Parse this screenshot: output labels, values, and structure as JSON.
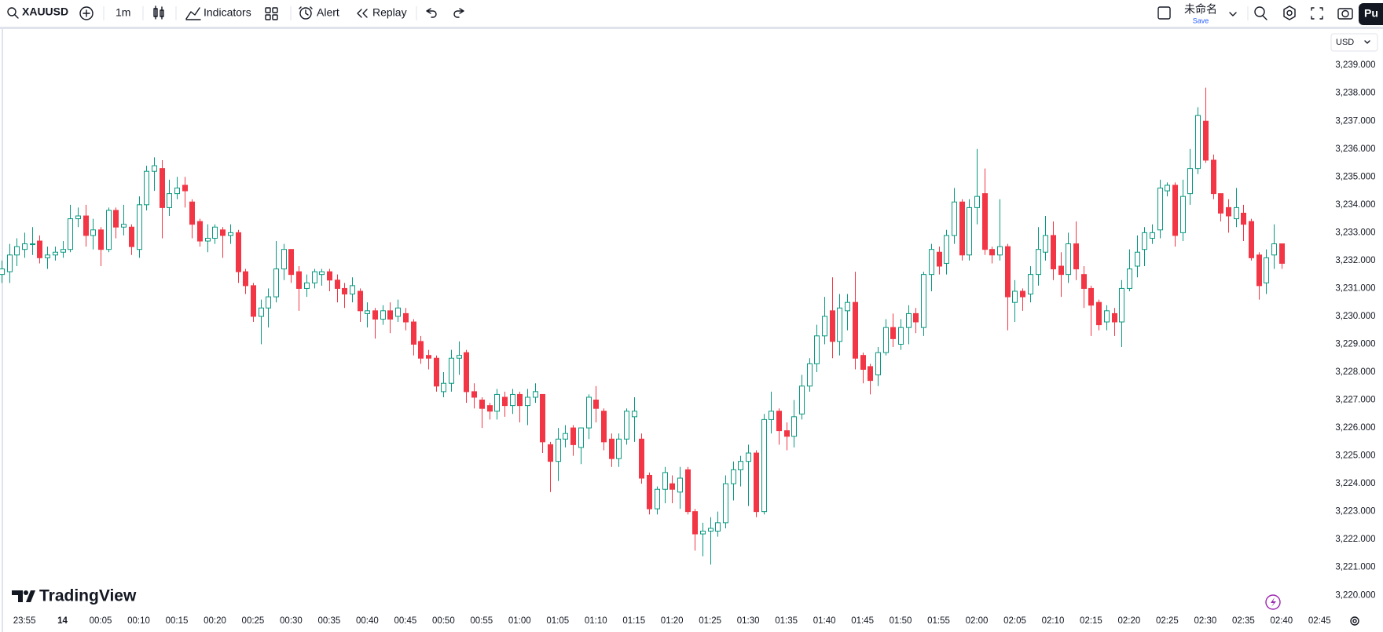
{
  "toolbar": {
    "symbol": "XAUUSD",
    "interval": "1m",
    "indicators": "Indicators",
    "alert": "Alert",
    "replay": "Replay",
    "layout_name": "未命名",
    "save": "Save",
    "publish": "Pu"
  },
  "chart_data": {
    "type": "candlestick",
    "currency": "USD",
    "watermark": "TradingView",
    "up_color": "#089981",
    "down_color": "#f23645",
    "up_hollow": true,
    "grid": false,
    "ylim": [
      3219.5,
      3240.3
    ],
    "yticks": [
      {
        "value": 3220,
        "label": "3,220.000"
      },
      {
        "value": 3221,
        "label": "3,221.000"
      },
      {
        "value": 3222,
        "label": "3,222.000"
      },
      {
        "value": 3223,
        "label": "3,223.000"
      },
      {
        "value": 3224,
        "label": "3,224.000"
      },
      {
        "value": 3225,
        "label": "3,225.000"
      },
      {
        "value": 3226,
        "label": "3,226.000"
      },
      {
        "value": 3227,
        "label": "3,227.000"
      },
      {
        "value": 3228,
        "label": "3,228.000"
      },
      {
        "value": 3229,
        "label": "3,229.000"
      },
      {
        "value": 3230,
        "label": "3,230.000"
      },
      {
        "value": 3231,
        "label": "3,231.000"
      },
      {
        "value": 3232,
        "label": "3,232.000"
      },
      {
        "value": 3233,
        "label": "3,233.000"
      },
      {
        "value": 3234,
        "label": "3,234.000"
      },
      {
        "value": 3235,
        "label": "3,235.000"
      },
      {
        "value": 3236,
        "label": "3,236.000"
      },
      {
        "value": 3237,
        "label": "3,237.000"
      },
      {
        "value": 3238,
        "label": "3,238.000"
      },
      {
        "value": 3239,
        "label": "3,239.000"
      }
    ],
    "xlim": [
      "23:52",
      "02:46"
    ],
    "xticks": [
      "23:55",
      {
        "value": "00:00",
        "label": "14"
      },
      "00:05",
      "00:10",
      "00:15",
      "00:20",
      "00:25",
      "00:30",
      "00:35",
      "00:40",
      "00:45",
      "00:50",
      "00:55",
      "01:00",
      "01:05",
      "01:10",
      "01:15",
      "01:20",
      "01:25",
      "01:30",
      "01:35",
      "01:40",
      "01:45",
      "01:50",
      "01:55",
      "02:00",
      "02:05",
      "02:10",
      "02:15",
      "02:20",
      "02:25",
      "02:30",
      "02:35",
      "02:40",
      "02:45"
    ],
    "x": [
      "23:52",
      "23:53",
      "23:54",
      "23:55",
      "23:56",
      "23:57",
      "23:58",
      "23:59",
      "00:00",
      "00:01",
      "00:02",
      "00:03",
      "00:04",
      "00:05",
      "00:06",
      "00:07",
      "00:08",
      "00:09",
      "00:10",
      "00:11",
      "00:12",
      "00:13",
      "00:14",
      "00:15",
      "00:16",
      "00:17",
      "00:18",
      "00:19",
      "00:20",
      "00:21",
      "00:22",
      "00:23",
      "00:24",
      "00:25",
      "00:26",
      "00:27",
      "00:28",
      "00:29",
      "00:30",
      "00:31",
      "00:32",
      "00:33",
      "00:34",
      "00:35",
      "00:36",
      "00:37",
      "00:38",
      "00:39",
      "00:40",
      "00:41",
      "00:42",
      "00:43",
      "00:44",
      "00:45",
      "00:46",
      "00:47",
      "00:48",
      "00:49",
      "00:50",
      "00:51",
      "00:52",
      "00:53",
      "00:54",
      "00:55",
      "00:56",
      "00:57",
      "00:58",
      "00:59",
      "01:00",
      "01:01",
      "01:02",
      "01:03",
      "01:04",
      "01:05",
      "01:06",
      "01:07",
      "01:08",
      "01:09",
      "01:10",
      "01:11",
      "01:12",
      "01:13",
      "01:14",
      "01:15",
      "01:16",
      "01:17",
      "01:18",
      "01:19",
      "01:20",
      "01:21",
      "01:22",
      "01:23",
      "01:24",
      "01:25",
      "01:26",
      "01:27",
      "01:28",
      "01:29",
      "01:30",
      "01:31",
      "01:32",
      "01:33",
      "01:34",
      "01:35",
      "01:36",
      "01:37",
      "01:38",
      "01:39",
      "01:40",
      "01:41",
      "01:42",
      "01:43",
      "01:44",
      "01:45",
      "01:46",
      "01:47",
      "01:48",
      "01:49",
      "01:50",
      "01:51",
      "01:52",
      "01:53",
      "01:54",
      "01:55",
      "01:56",
      "01:57",
      "01:58",
      "01:59",
      "02:00",
      "02:01",
      "02:02",
      "02:03",
      "02:04",
      "02:05",
      "02:06",
      "02:07",
      "02:08",
      "02:09",
      "02:10",
      "02:11",
      "02:12",
      "02:13",
      "02:14",
      "02:15",
      "02:16",
      "02:17",
      "02:18",
      "02:19",
      "02:20",
      "02:21",
      "02:22",
      "02:23",
      "02:24",
      "02:25",
      "02:26",
      "02:27",
      "02:28",
      "02:29",
      "02:30",
      "02:31",
      "02:32",
      "02:33",
      "02:34",
      "02:35",
      "02:36",
      "02:37",
      "02:38",
      "02:39",
      "02:40"
    ],
    "open": [
      3231.5,
      3231.6,
      3232.2,
      3232.4,
      3232.6,
      3232.7,
      3232.1,
      3232.2,
      3232.3,
      3232.4,
      3233.5,
      3233.6,
      3232.9,
      3233.1,
      3232.4,
      3233.8,
      3233.2,
      3233.2,
      3232.4,
      3234.0,
      3235.2,
      3235.3,
      3233.9,
      3234.4,
      3234.7,
      3234.1,
      3233.4,
      3232.7,
      3232.8,
      3233.1,
      3232.9,
      3233.0,
      3231.6,
      3231.1,
      3230.0,
      3230.3,
      3230.7,
      3231.7,
      3232.4,
      3231.6,
      3231.0,
      3231.2,
      3231.5,
      3231.6,
      3231.3,
      3231.0,
      3230.8,
      3230.9,
      3230.1,
      3230.2,
      3229.9,
      3230.2,
      3230.0,
      3230.1,
      3229.8,
      3229.1,
      3228.6,
      3228.5,
      3227.3,
      3227.6,
      3228.5,
      3228.7,
      3227.3,
      3227.0,
      3226.8,
      3226.6,
      3227.1,
      3226.8,
      3227.2,
      3226.8,
      3227.1,
      3227.2,
      3225.4,
      3224.8,
      3225.6,
      3226.0,
      3225.3,
      3226.0,
      3227.0,
      3226.6,
      3225.6,
      3224.9,
      3225.6,
      3226.4,
      3225.6,
      3224.3,
      3223.1,
      3223.8,
      3224.0,
      3223.7,
      3224.5,
      3223.0,
      3222.2,
      3222.3,
      3222.3,
      3222.6,
      3224.0,
      3224.5,
      3224.8,
      3225.1,
      3223.0,
      3226.3,
      3226.6,
      3225.9,
      3225.7,
      3226.5,
      3227.5,
      3228.3,
      3229.3,
      3230.2,
      3229.1,
      3230.2,
      3230.5,
      3228.6,
      3228.2,
      3227.9,
      3228.7,
      3229.6,
      3229.0,
      3229.6,
      3230.1,
      3229.6,
      3231.5,
      3232.3,
      3231.9,
      3232.9,
      3234.1,
      3232.2,
      3233.9,
      3234.4,
      3232.4,
      3232.2,
      3232.5,
      3230.5,
      3230.9,
      3230.8,
      3231.5,
      3232.3,
      3232.9,
      3231.8,
      3231.5,
      3232.6,
      3231.5,
      3231.0,
      3230.5,
      3229.8,
      3230.1,
      3229.8,
      3231.0,
      3231.8,
      3232.4,
      3232.8,
      3233.1,
      3234.5,
      3234.7,
      3233.0,
      3234.4,
      3235.3,
      3237.0,
      3235.6,
      3234.4,
      3233.9,
      3233.5,
      3233.7,
      3233.4,
      3232.2,
      3231.2,
      3232.2,
      3232.6
    ],
    "high": [
      3232.0,
      3232.6,
      3232.8,
      3233.0,
      3233.2,
      3232.9,
      3232.5,
      3232.5,
      3232.7,
      3234.0,
      3233.9,
      3234.0,
      3233.5,
      3233.2,
      3233.9,
      3233.9,
      3234.0,
      3233.3,
      3234.3,
      3235.4,
      3235.7,
      3235.6,
      3234.9,
      3235.0,
      3235.0,
      3234.2,
      3233.5,
      3233.3,
      3233.3,
      3233.2,
      3233.3,
      3233.1,
      3231.7,
      3231.2,
      3230.6,
      3231.0,
      3232.7,
      3232.6,
      3232.4,
      3231.8,
      3231.5,
      3231.7,
      3231.7,
      3231.7,
      3231.5,
      3231.2,
      3231.4,
      3231.0,
      3230.5,
      3230.3,
      3230.4,
      3230.5,
      3230.6,
      3230.3,
      3229.9,
      3229.3,
      3228.8,
      3228.6,
      3228.0,
      3228.8,
      3229.1,
      3228.8,
      3227.6,
      3227.1,
      3226.9,
      3227.4,
      3227.3,
      3227.4,
      3227.3,
      3227.4,
      3227.6,
      3227.2,
      3225.5,
      3226.0,
      3226.1,
      3226.1,
      3226.0,
      3227.2,
      3227.5,
      3226.7,
      3225.8,
      3225.8,
      3226.7,
      3227.1,
      3225.8,
      3224.4,
      3223.9,
      3224.6,
      3224.3,
      3224.6,
      3224.6,
      3223.1,
      3222.6,
      3222.8,
      3223.0,
      3224.3,
      3224.8,
      3225.0,
      3225.4,
      3225.2,
      3226.5,
      3227.3,
      3226.7,
      3226.2,
      3227.0,
      3227.9,
      3228.5,
      3229.7,
      3230.7,
      3231.4,
      3230.8,
      3230.8,
      3231.6,
      3228.7,
      3228.3,
      3228.9,
      3229.9,
      3230.1,
      3229.9,
      3230.4,
      3230.3,
      3231.6,
      3232.6,
      3232.5,
      3233.1,
      3234.6,
      3234.2,
      3234.2,
      3236.0,
      3235.3,
      3232.5,
      3234.2,
      3232.6,
      3231.3,
      3231.0,
      3231.8,
      3233.2,
      3233.6,
      3233.4,
      3232.3,
      3233.0,
      3233.4,
      3231.8,
      3231.1,
      3230.6,
      3230.4,
      3230.3,
      3231.3,
      3232.4,
      3232.9,
      3233.2,
      3233.3,
      3234.9,
      3234.8,
      3234.8,
      3234.9,
      3236.0,
      3237.5,
      3238.2,
      3235.8,
      3234.4,
      3234.2,
      3234.6,
      3234.0,
      3233.5,
      3232.3,
      3232.4,
      3233.3,
      3232.6
    ],
    "low": [
      3231.2,
      3231.2,
      3231.8,
      3232.1,
      3232.2,
      3231.9,
      3231.7,
      3232.0,
      3232.1,
      3232.3,
      3233.2,
      3232.5,
      3232.4,
      3231.8,
      3232.3,
      3232.8,
      3232.9,
      3232.2,
      3232.1,
      3233.8,
      3234.5,
      3232.8,
      3233.6,
      3234.2,
      3233.9,
      3232.8,
      3232.5,
      3232.3,
      3232.6,
      3232.1,
      3232.6,
      3231.2,
      3230.8,
      3229.8,
      3229.0,
      3229.6,
      3230.5,
      3231.3,
      3231.2,
      3230.2,
      3230.7,
      3231.0,
      3231.1,
      3230.9,
      3230.5,
      3230.3,
      3230.5,
      3229.8,
      3229.6,
      3229.2,
      3229.7,
      3229.4,
      3229.8,
      3229.5,
      3228.6,
      3228.3,
      3228.1,
      3227.3,
      3227.1,
      3227.3,
      3227.9,
      3226.9,
      3226.7,
      3226.0,
      3226.3,
      3226.3,
      3226.4,
      3226.5,
      3226.2,
      3226.1,
      3226.9,
      3225.1,
      3223.7,
      3224.1,
      3225.3,
      3225.0,
      3224.7,
      3225.6,
      3226.2,
      3225.2,
      3224.6,
      3224.6,
      3225.4,
      3225.5,
      3224.0,
      3222.9,
      3222.9,
      3223.3,
      3223.3,
      3223.1,
      3222.9,
      3221.6,
      3221.4,
      3221.1,
      3222.1,
      3222.4,
      3223.4,
      3223.9,
      3223.2,
      3222.8,
      3222.9,
      3225.8,
      3225.4,
      3225.2,
      3225.3,
      3226.3,
      3227.3,
      3228.0,
      3229.0,
      3228.5,
      3228.6,
      3229.5,
      3228.1,
      3227.6,
      3227.2,
      3227.5,
      3228.6,
      3228.9,
      3228.8,
      3229.0,
      3229.4,
      3229.3,
      3230.9,
      3231.5,
      3231.5,
      3232.6,
      3232.0,
      3232.0,
      3233.3,
      3232.2,
      3231.9,
      3232.0,
      3229.5,
      3229.8,
      3230.2,
      3230.5,
      3231.1,
      3232.0,
      3231.3,
      3230.7,
      3231.2,
      3231.3,
      3230.3,
      3229.3,
      3229.5,
      3229.5,
      3229.3,
      3228.9,
      3230.9,
      3231.4,
      3231.8,
      3232.6,
      3232.8,
      3234.3,
      3232.5,
      3232.7,
      3234.0,
      3235.1,
      3235.5,
      3234.2,
      3233.4,
      3233.0,
      3233.2,
      3232.7,
      3232.0,
      3230.6,
      3230.8,
      3231.7,
      3231.7
    ],
    "close": [
      3231.7,
      3232.2,
      3232.5,
      3232.6,
      3232.6,
      3232.1,
      3232.2,
      3232.3,
      3232.4,
      3233.5,
      3233.6,
      3232.9,
      3233.1,
      3232.4,
      3233.8,
      3233.2,
      3233.3,
      3232.5,
      3234.0,
      3235.2,
      3235.4,
      3233.9,
      3234.4,
      3234.6,
      3234.5,
      3233.3,
      3232.7,
      3232.8,
      3233.2,
      3232.9,
      3233.0,
      3231.6,
      3231.1,
      3230.0,
      3230.3,
      3230.7,
      3231.7,
      3232.4,
      3231.5,
      3231.0,
      3231.2,
      3231.6,
      3231.6,
      3231.3,
      3231.0,
      3230.8,
      3231.1,
      3230.2,
      3230.2,
      3229.9,
      3230.2,
      3229.9,
      3230.3,
      3229.8,
      3229.0,
      3228.5,
      3228.5,
      3227.5,
      3227.6,
      3228.5,
      3228.6,
      3227.3,
      3227.1,
      3226.7,
      3226.6,
      3227.2,
      3226.8,
      3227.2,
      3226.8,
      3227.1,
      3227.3,
      3225.5,
      3224.8,
      3225.6,
      3225.8,
      3225.4,
      3226.0,
      3227.1,
      3226.7,
      3225.5,
      3224.9,
      3225.6,
      3226.6,
      3226.6,
      3224.2,
      3223.1,
      3223.8,
      3224.4,
      3223.8,
      3224.2,
      3223.0,
      3222.2,
      3222.3,
      3222.4,
      3222.6,
      3224.0,
      3224.5,
      3224.8,
      3225.1,
      3223.0,
      3226.3,
      3226.6,
      3225.9,
      3225.7,
      3226.4,
      3227.5,
      3228.3,
      3229.3,
      3230.0,
      3229.1,
      3230.3,
      3230.5,
      3228.5,
      3228.1,
      3227.7,
      3228.7,
      3229.6,
      3229.2,
      3229.6,
      3230.1,
      3229.8,
      3231.5,
      3232.4,
      3231.8,
      3232.9,
      3234.1,
      3232.2,
      3233.9,
      3234.3,
      3232.4,
      3232.2,
      3232.5,
      3230.7,
      3230.9,
      3230.7,
      3231.5,
      3232.4,
      3232.9,
      3231.7,
      3231.5,
      3232.6,
      3231.7,
      3231.0,
      3230.4,
      3229.7,
      3230.2,
      3229.8,
      3231.0,
      3231.7,
      3232.3,
      3233.0,
      3233.0,
      3234.6,
      3234.7,
      3232.9,
      3234.3,
      3235.3,
      3237.2,
      3235.6,
      3234.4,
      3233.7,
      3233.6,
      3233.9,
      3233.3,
      3232.1,
      3231.1,
      3232.1,
      3232.6,
      3231.9
    ]
  }
}
